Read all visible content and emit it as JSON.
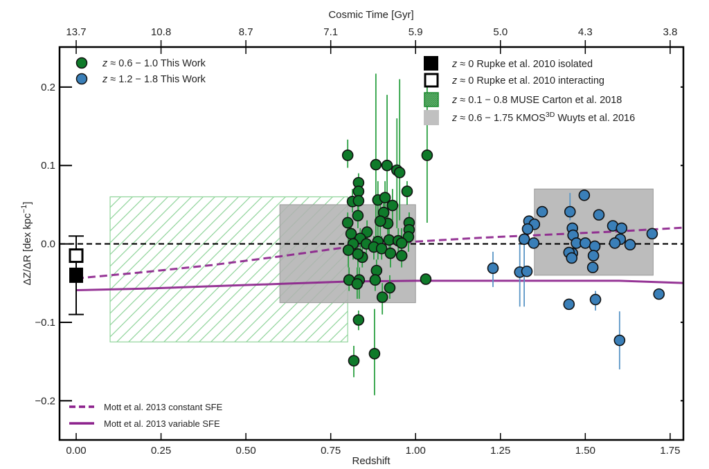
{
  "chart_data": {
    "type": "scatter",
    "title": "",
    "xlabel": "Redshift",
    "ylabel": "ΔZ/ΔR [dex kpc⁻¹]",
    "ylabel_parts": {
      "main": "ΔZ/ΔR [dex kpc",
      "sup": "−1",
      "tail": "]"
    },
    "top_xlabel": "Cosmic Time [Gyr]",
    "xlim": [
      -0.049,
      1.789
    ],
    "ylim": [
      -0.25,
      0.251
    ],
    "xticks": [
      0.0,
      0.25,
      0.5,
      0.75,
      1.0,
      1.25,
      1.5,
      1.75
    ],
    "xtick_labels": [
      "0.00",
      "0.25",
      "0.50",
      "0.75",
      "1.00",
      "1.25",
      "1.50",
      "1.75"
    ],
    "yticks": [
      -0.2,
      -0.1,
      0.0,
      0.1,
      0.2
    ],
    "ytick_labels": [
      "−0.2",
      "−0.1",
      "0.0",
      "0.1",
      "0.2"
    ],
    "top_ticks_redshift": [
      0.0,
      0.25,
      0.5,
      0.75,
      1.0,
      1.25,
      1.5,
      1.75
    ],
    "top_tick_labels": [
      "13.7",
      "10.8",
      "8.7",
      "7.1",
      "5.9",
      "5.0",
      "4.3",
      "3.8"
    ],
    "grid": false,
    "reference_line": {
      "y": 0.0,
      "style": "dashed",
      "color": "#000000"
    },
    "colors": {
      "green": "#0f7a2a",
      "green_err": "#2ca042",
      "blue": "#3a7fb8",
      "blue_err": "#5a96c6",
      "purple": "#8b1f8b",
      "gray_box": "#b0b0b0",
      "hatch": "#8fd49a"
    },
    "regions": [
      {
        "name": "MUSE Carton et al. 2018",
        "x": [
          0.1,
          0.8
        ],
        "y": [
          -0.125,
          0.06
        ],
        "style": "hatch"
      },
      {
        "name": "KMOS3D Wuyts et al. 2016 (low-z)",
        "x": [
          0.6,
          1.0
        ],
        "y": [
          -0.075,
          0.05
        ],
        "style": "gray"
      },
      {
        "name": "KMOS3D Wuyts et al. 2016 (high-z)",
        "x": [
          1.35,
          1.7
        ],
        "y": [
          -0.04,
          0.07
        ],
        "style": "gray"
      }
    ],
    "model_lines": [
      {
        "name": "Mott et al. 2013 constant SFE",
        "style": "dashed",
        "x": [
          0.0,
          0.2,
          0.4,
          0.6,
          0.8,
          1.0,
          1.2,
          1.4,
          1.6,
          1.8
        ],
        "y": [
          -0.044,
          -0.036,
          -0.027,
          -0.016,
          -0.004,
          0.003,
          0.008,
          0.012,
          0.016,
          0.021
        ]
      },
      {
        "name": "Mott et al. 2013 variable SFE",
        "style": "solid",
        "x": [
          0.0,
          0.2,
          0.4,
          0.6,
          0.8,
          1.0,
          1.2,
          1.4,
          1.6,
          1.8
        ],
        "y": [
          -0.059,
          -0.057,
          -0.054,
          -0.051,
          -0.048,
          -0.047,
          -0.047,
          -0.047,
          -0.047,
          -0.05
        ]
      }
    ],
    "rupke": {
      "isolated": {
        "z": 0.0,
        "y": -0.04,
        "err_lo": -0.09,
        "err_hi": 0.01
      },
      "interacting": {
        "z": 0.0,
        "y": -0.015
      }
    },
    "series": [
      {
        "name": "z ≈ 0.6 − 1.0 This Work",
        "color": "green",
        "points": [
          {
            "x": 0.8,
            "y": 0.113,
            "lo": 0.097,
            "hi": 0.133
          },
          {
            "x": 0.883,
            "y": 0.101,
            "lo": 0.0,
            "hi": 0.217
          },
          {
            "x": 0.916,
            "y": 0.1,
            "lo": 0.02,
            "hi": 0.19
          },
          {
            "x": 0.945,
            "y": 0.094,
            "lo": 0.02,
            "hi": 0.16
          },
          {
            "x": 0.953,
            "y": 0.091,
            "lo": 0.03,
            "hi": 0.21
          },
          {
            "x": 1.034,
            "y": 0.113,
            "lo": 0.027,
            "hi": 0.215
          },
          {
            "x": 0.975,
            "y": 0.067,
            "lo": 0.05,
            "hi": 0.08
          },
          {
            "x": 0.832,
            "y": 0.078,
            "lo": 0.06,
            "hi": 0.09
          },
          {
            "x": 0.832,
            "y": 0.067,
            "lo": 0.05,
            "hi": 0.08
          },
          {
            "x": 0.814,
            "y": 0.054,
            "lo": 0.04,
            "hi": 0.07
          },
          {
            "x": 0.832,
            "y": 0.055,
            "lo": 0.04,
            "hi": 0.07
          },
          {
            "x": 0.889,
            "y": 0.056,
            "lo": 0.03,
            "hi": 0.08
          },
          {
            "x": 0.91,
            "y": 0.059,
            "lo": 0.04,
            "hi": 0.08
          },
          {
            "x": 0.932,
            "y": 0.049,
            "lo": 0.03,
            "hi": 0.07
          },
          {
            "x": 0.8,
            "y": 0.027,
            "lo": 0.01,
            "hi": 0.04
          },
          {
            "x": 0.83,
            "y": 0.036,
            "lo": 0.02,
            "hi": 0.05
          },
          {
            "x": 0.906,
            "y": 0.04,
            "lo": 0.02,
            "hi": 0.06
          },
          {
            "x": 0.918,
            "y": 0.026,
            "lo": 0.0,
            "hi": 0.05
          },
          {
            "x": 0.896,
            "y": 0.029,
            "lo": 0.01,
            "hi": 0.05
          },
          {
            "x": 0.81,
            "y": 0.013,
            "lo": -0.01,
            "hi": 0.03
          },
          {
            "x": 0.857,
            "y": 0.015,
            "lo": 0.0,
            "hi": 0.03
          },
          {
            "x": 0.981,
            "y": 0.027,
            "lo": 0.01,
            "hi": 0.04
          },
          {
            "x": 0.981,
            "y": 0.018,
            "lo": 0.0,
            "hi": 0.04
          },
          {
            "x": 0.979,
            "y": 0.009,
            "lo": -0.01,
            "hi": 0.03
          },
          {
            "x": 0.837,
            "y": 0.007,
            "lo": -0.01,
            "hi": 0.02
          },
          {
            "x": 0.816,
            "y": 0.0,
            "lo": -0.02,
            "hi": 0.02
          },
          {
            "x": 0.855,
            "y": 0.0,
            "lo": -0.02,
            "hi": 0.02
          },
          {
            "x": 0.889,
            "y": 0.003,
            "lo": -0.02,
            "hi": 0.03
          },
          {
            "x": 0.922,
            "y": 0.005,
            "lo": -0.01,
            "hi": 0.02
          },
          {
            "x": 0.949,
            "y": 0.004,
            "lo": -0.01,
            "hi": 0.02
          },
          {
            "x": 0.959,
            "y": 0.001,
            "lo": -0.02,
            "hi": 0.02
          },
          {
            "x": 0.802,
            "y": -0.008,
            "lo": -0.03,
            "hi": 0.01
          },
          {
            "x": 0.877,
            "y": -0.004,
            "lo": -0.02,
            "hi": 0.01
          },
          {
            "x": 0.9,
            "y": -0.006,
            "lo": -0.02,
            "hi": 0.01
          },
          {
            "x": 0.843,
            "y": -0.017,
            "lo": -0.03,
            "hi": 0.0
          },
          {
            "x": 0.926,
            "y": -0.012,
            "lo": -0.03,
            "hi": 0.0
          },
          {
            "x": 0.959,
            "y": -0.015,
            "lo": -0.03,
            "hi": 0.0
          },
          {
            "x": 0.83,
            "y": -0.013,
            "lo": -0.03,
            "hi": 0.0
          },
          {
            "x": 0.885,
            "y": -0.034,
            "lo": -0.05,
            "hi": -0.02
          },
          {
            "x": 0.804,
            "y": -0.046,
            "lo": -0.06,
            "hi": -0.03
          },
          {
            "x": 0.834,
            "y": -0.046,
            "lo": -0.07,
            "hi": -0.03
          },
          {
            "x": 0.828,
            "y": -0.051,
            "lo": -0.07,
            "hi": -0.03
          },
          {
            "x": 0.881,
            "y": -0.046,
            "lo": -0.06,
            "hi": -0.03
          },
          {
            "x": 0.924,
            "y": -0.056,
            "lo": -0.07,
            "hi": -0.04
          },
          {
            "x": 0.902,
            "y": -0.068,
            "lo": -0.09,
            "hi": -0.05
          },
          {
            "x": 1.03,
            "y": -0.045,
            "lo": -0.05,
            "hi": -0.04
          },
          {
            "x": 0.832,
            "y": -0.097,
            "lo": -0.11,
            "hi": -0.085
          },
          {
            "x": 0.818,
            "y": -0.149,
            "lo": -0.17,
            "hi": -0.13
          },
          {
            "x": 0.879,
            "y": -0.14,
            "lo": -0.193,
            "hi": -0.083
          }
        ]
      },
      {
        "name": "z ≈ 1.2 − 1.8 This Work",
        "color": "blue",
        "points": [
          {
            "x": 1.228,
            "y": -0.031,
            "lo": -0.055,
            "hi": -0.01
          },
          {
            "x": 1.307,
            "y": -0.036,
            "lo": -0.08,
            "hi": 0.0
          },
          {
            "x": 1.328,
            "y": -0.035,
            "lo": -0.04,
            "hi": -0.03
          },
          {
            "x": 1.373,
            "y": 0.041,
            "lo": 0.035,
            "hi": 0.048
          },
          {
            "x": 1.334,
            "y": 0.029,
            "lo": 0.02,
            "hi": 0.035
          },
          {
            "x": 1.35,
            "y": 0.025,
            "lo": 0.02,
            "hi": 0.03
          },
          {
            "x": 1.33,
            "y": 0.019,
            "lo": 0.015,
            "hi": 0.025
          },
          {
            "x": 1.32,
            "y": 0.006,
            "lo": -0.08,
            "hi": 0.01
          },
          {
            "x": 1.348,
            "y": 0.001,
            "lo": -0.005,
            "hi": 0.006
          },
          {
            "x": 1.455,
            "y": 0.041,
            "lo": 0.03,
            "hi": 0.065
          },
          {
            "x": 1.497,
            "y": 0.062,
            "lo": 0.058,
            "hi": 0.066
          },
          {
            "x": 1.54,
            "y": 0.037,
            "lo": 0.032,
            "hi": 0.042
          },
          {
            "x": 1.462,
            "y": 0.02,
            "lo": 0.015,
            "hi": 0.025
          },
          {
            "x": 1.464,
            "y": 0.011,
            "lo": 0.006,
            "hi": 0.016
          },
          {
            "x": 1.581,
            "y": 0.023,
            "lo": 0.018,
            "hi": 0.028
          },
          {
            "x": 1.607,
            "y": 0.02,
            "lo": 0.015,
            "hi": 0.025
          },
          {
            "x": 1.603,
            "y": 0.006,
            "lo": 0.0,
            "hi": 0.012
          },
          {
            "x": 1.587,
            "y": 0.001,
            "lo": -0.005,
            "hi": 0.006
          },
          {
            "x": 1.632,
            "y": -0.001,
            "lo": -0.006,
            "hi": 0.004
          },
          {
            "x": 1.697,
            "y": 0.013,
            "lo": 0.008,
            "hi": 0.018
          },
          {
            "x": 1.474,
            "y": 0.001,
            "lo": -0.005,
            "hi": 0.006
          },
          {
            "x": 1.5,
            "y": 0.001,
            "lo": -0.005,
            "hi": 0.006
          },
          {
            "x": 1.462,
            "y": -0.012,
            "lo": -0.018,
            "hi": -0.006
          },
          {
            "x": 1.452,
            "y": -0.011,
            "lo": -0.016,
            "hi": -0.006
          },
          {
            "x": 1.46,
            "y": -0.018,
            "lo": -0.024,
            "hi": -0.012
          },
          {
            "x": 1.528,
            "y": -0.003,
            "lo": -0.008,
            "hi": 0.002
          },
          {
            "x": 1.524,
            "y": -0.015,
            "lo": -0.02,
            "hi": -0.01
          },
          {
            "x": 1.522,
            "y": -0.03,
            "lo": -0.035,
            "hi": -0.025
          },
          {
            "x": 1.452,
            "y": -0.077,
            "lo": -0.082,
            "hi": -0.072
          },
          {
            "x": 1.53,
            "y": -0.071,
            "lo": -0.085,
            "hi": -0.06
          },
          {
            "x": 1.601,
            "y": -0.123,
            "lo": -0.16,
            "hi": -0.086
          },
          {
            "x": 1.717,
            "y": -0.064,
            "lo": -0.07,
            "hi": -0.058
          }
        ]
      }
    ],
    "legends": {
      "top_left": [
        {
          "marker": "circle",
          "color": "green",
          "label_prefix": "z",
          "label": " ≈ 0.6 − 1.0 This Work"
        },
        {
          "marker": "circle",
          "color": "blue",
          "label_prefix": "z",
          "label": " ≈ 1.2 − 1.8 This Work"
        }
      ],
      "top_right": [
        {
          "marker": "filled-square",
          "label_prefix": "z",
          "label": " ≈ 0 Rupke et al. 2010 isolated"
        },
        {
          "marker": "open-square",
          "label_prefix": "z",
          "label": " ≈ 0 Rupke et al. 2010 interacting"
        },
        {
          "marker": "hatch-square",
          "label_prefix": "z",
          "label": " ≈ 0.1 − 0.8 MUSE Carton et al. 2018"
        },
        {
          "marker": "gray-square",
          "label_prefix": "z",
          "label": " ≈ 0.6 − 1.75 KMOS",
          "sup": "3D",
          "label_tail": " Wuyts et al. 2016"
        }
      ],
      "bottom_left": [
        {
          "marker": "dashed-line",
          "label": "Mott et al. 2013 constant SFE"
        },
        {
          "marker": "solid-line",
          "label": "Mott et al. 2013 variable SFE"
        }
      ]
    }
  }
}
